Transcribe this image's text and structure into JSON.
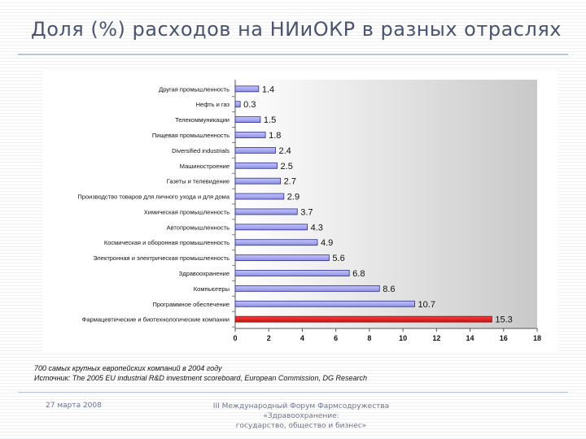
{
  "slide": {
    "title": "Доля (%) расходов на НИиОКР в разных отраслях"
  },
  "chart_data": {
    "type": "bar",
    "orientation": "horizontal",
    "title": "",
    "xlabel": "",
    "ylabel": "",
    "xlim": [
      0,
      18
    ],
    "x_ticks": [
      "0",
      "2",
      "4",
      "6",
      "8",
      "10",
      "12",
      "14",
      "16",
      "18"
    ],
    "categories": [
      "Другая промышленность",
      "Нефть и газ",
      "Телекоммуникации",
      "Пищевая промышленность",
      "Diversified industrials",
      "Машиностроение",
      "Газеты и телевидение",
      "Производство товаров для личного ухода и для дома",
      "Химическая промышленность",
      "Автопромышленность",
      "Космическая и оборонная промышленность",
      "Электронная и электрическая промышленность",
      "Здравоохранение",
      "Компьютеры",
      "Программное обеспечение",
      "Фармацевтические и биотехнологические компании"
    ],
    "values": [
      1.4,
      0.3,
      1.5,
      1.8,
      2.4,
      2.5,
      2.7,
      2.9,
      3.7,
      4.3,
      4.9,
      5.6,
      6.8,
      8.6,
      10.7,
      15.3
    ],
    "value_labels": [
      "1.4",
      "0.3",
      "1.5",
      "1.8",
      "2.4",
      "2.5",
      "2.7",
      "2.9",
      "3.7",
      "4.3",
      "4.9",
      "5.6",
      "6.8",
      "8.6",
      "10.7",
      "15.3"
    ],
    "bar_color": "#9a9cf0",
    "highlight_color": "#e8242a",
    "highlight_index": 15,
    "grid": false
  },
  "notes": {
    "line1": "700 самых крупных европейских компаний в 2004 году",
    "line2": "Источник: The 2005 EU industrial R&D investment scoreboard, European Commission, DG Research"
  },
  "footer": {
    "date": "27 марта 2008",
    "forum_line1": "III Международный Форум Фармсодружества",
    "forum_line2": "«Здравоохранение:",
    "forum_line3": "государство, общество и бизнес»"
  }
}
